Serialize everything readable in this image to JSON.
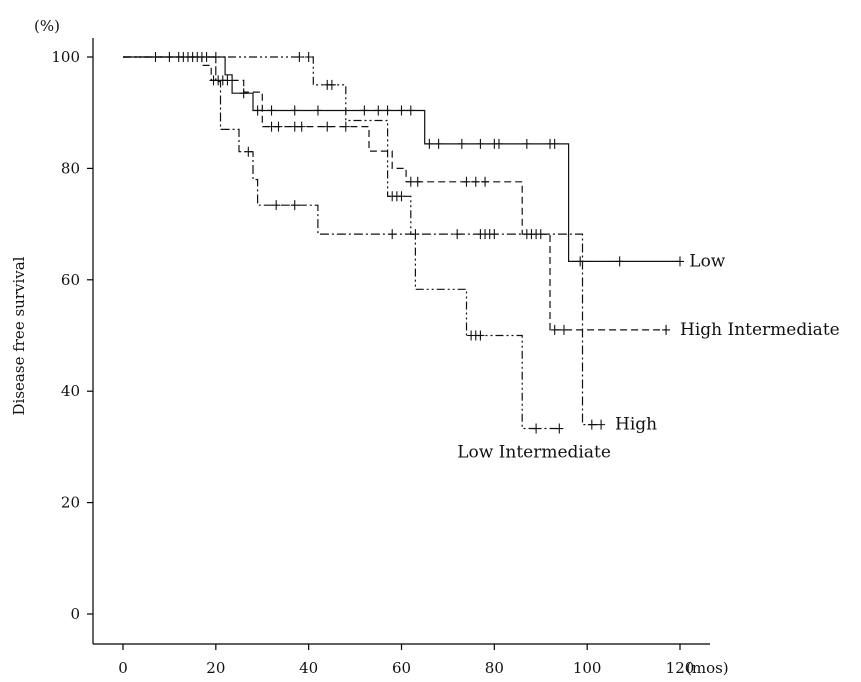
{
  "chart_data": {
    "type": "line",
    "subtype": "kaplan-meier step",
    "ylabel": "Disease free survival",
    "y_unit_label": "(%)",
    "x_unit_label": "(mos)",
    "xlim": [
      0,
      120
    ],
    "ylim": [
      0,
      100
    ],
    "x_ticks": [
      0,
      20,
      40,
      60,
      80,
      100,
      120
    ],
    "y_ticks": [
      0,
      20,
      40,
      60,
      80,
      100
    ],
    "grid": false,
    "series": [
      {
        "name": "Low",
        "style": "solid",
        "steps": [
          [
            0,
            100
          ],
          [
            22,
            100
          ],
          [
            22,
            96.8
          ],
          [
            23.5,
            96.8
          ],
          [
            23.5,
            93.5
          ],
          [
            28,
            93.5
          ],
          [
            28,
            90.4
          ],
          [
            65,
            90.4
          ],
          [
            65,
            84.4
          ],
          [
            96,
            84.4
          ],
          [
            96,
            63.3
          ],
          [
            120,
            63.3
          ]
        ],
        "censored": [
          [
            26,
            93.5
          ],
          [
            29,
            90.4
          ],
          [
            32,
            90.4
          ],
          [
            37,
            90.4
          ],
          [
            42,
            90.4
          ],
          [
            52,
            90.4
          ],
          [
            55,
            90.4
          ],
          [
            57,
            90.4
          ],
          [
            60,
            90.4
          ],
          [
            62,
            90.4
          ],
          [
            66,
            84.4
          ],
          [
            68,
            84.4
          ],
          [
            73,
            84.4
          ],
          [
            77,
            84.4
          ],
          [
            80,
            84.4
          ],
          [
            81,
            84.4
          ],
          [
            87,
            84.4
          ],
          [
            92,
            84.4
          ],
          [
            93,
            84.4
          ],
          [
            98.5,
            63.3
          ],
          [
            107,
            63.3
          ],
          [
            120,
            63.3
          ]
        ]
      },
      {
        "name": "High Intermediate",
        "style": "dashed",
        "steps": [
          [
            0,
            100
          ],
          [
            17,
            100
          ],
          [
            17,
            98.5
          ],
          [
            19,
            98.5
          ],
          [
            19,
            95.8
          ],
          [
            26,
            95.8
          ],
          [
            26,
            93.7
          ],
          [
            30,
            93.7
          ],
          [
            30,
            87.5
          ],
          [
            53,
            87.5
          ],
          [
            53,
            83.1
          ],
          [
            58,
            83.1
          ],
          [
            58,
            80
          ],
          [
            61,
            80
          ],
          [
            61,
            77.6
          ],
          [
            86,
            77.6
          ],
          [
            86,
            68.2
          ],
          [
            92,
            68.2
          ],
          [
            92,
            51
          ],
          [
            117,
            51
          ]
        ],
        "censored": [
          [
            19.5,
            95.8
          ],
          [
            20.5,
            95.8
          ],
          [
            21.5,
            95.8
          ],
          [
            22.5,
            95.8
          ],
          [
            32,
            87.5
          ],
          [
            33.5,
            87.5
          ],
          [
            37,
            87.5
          ],
          [
            38.5,
            87.5
          ],
          [
            44,
            87.5
          ],
          [
            48,
            87.5
          ],
          [
            62,
            77.6
          ],
          [
            63.5,
            77.6
          ],
          [
            74,
            77.6
          ],
          [
            76,
            77.6
          ],
          [
            78,
            77.6
          ],
          [
            93,
            51
          ],
          [
            95,
            51
          ],
          [
            117,
            51
          ]
        ]
      },
      {
        "name": "Low Intermediate",
        "style": "dash-dot-dot",
        "steps": [
          [
            0,
            100
          ],
          [
            41,
            100
          ],
          [
            41,
            95
          ],
          [
            48,
            95
          ],
          [
            48,
            88.6
          ],
          [
            57,
            88.6
          ],
          [
            57,
            75
          ],
          [
            62,
            75
          ],
          [
            62,
            68.2
          ],
          [
            63,
            68.2
          ],
          [
            63,
            58.3
          ],
          [
            74,
            58.3
          ],
          [
            74,
            50
          ],
          [
            86,
            50
          ],
          [
            86,
            33.3
          ],
          [
            94,
            33.3
          ]
        ],
        "censored": [
          [
            10,
            100
          ],
          [
            12,
            100
          ],
          [
            14,
            100
          ],
          [
            16,
            100
          ],
          [
            38,
            100
          ],
          [
            40,
            100
          ],
          [
            44,
            95
          ],
          [
            45,
            95
          ],
          [
            58,
            75
          ],
          [
            59,
            75
          ],
          [
            60,
            75
          ],
          [
            75,
            50
          ],
          [
            76,
            50
          ],
          [
            77,
            50
          ],
          [
            89,
            33.3
          ],
          [
            94,
            33.3
          ]
        ]
      },
      {
        "name": "High",
        "style": "dash-dot",
        "steps": [
          [
            0,
            100
          ],
          [
            20,
            100
          ],
          [
            20,
            95.6
          ],
          [
            21,
            95.6
          ],
          [
            21,
            87
          ],
          [
            25,
            87
          ],
          [
            25,
            83
          ],
          [
            28,
            83
          ],
          [
            28,
            78
          ],
          [
            29,
            78
          ],
          [
            29,
            73.4
          ],
          [
            42,
            73.4
          ],
          [
            42,
            68.2
          ],
          [
            99,
            68.2
          ],
          [
            99,
            34
          ],
          [
            103,
            34
          ]
        ],
        "censored": [
          [
            7,
            100
          ],
          [
            13,
            100
          ],
          [
            15,
            100
          ],
          [
            17,
            100
          ],
          [
            18,
            100
          ],
          [
            20,
            100
          ],
          [
            27,
            83
          ],
          [
            33,
            73.4
          ],
          [
            37,
            73.4
          ],
          [
            58,
            68.2
          ],
          [
            63,
            68.2
          ],
          [
            72,
            68.2
          ],
          [
            77,
            68.2
          ],
          [
            78,
            68.2
          ],
          [
            79,
            68.2
          ],
          [
            80,
            68.2
          ],
          [
            87,
            68.2
          ],
          [
            88,
            68.2
          ],
          [
            89,
            68.2
          ],
          [
            90,
            68.2
          ],
          [
            101,
            34
          ],
          [
            103,
            34
          ]
        ]
      }
    ],
    "annotations": [
      {
        "text": "Low",
        "x": 122,
        "y": 63.3,
        "anchor": "start"
      },
      {
        "text": "High Intermediate",
        "x": 120,
        "y": 51,
        "anchor": "start"
      },
      {
        "text": "High",
        "x": 106,
        "y": 34,
        "anchor": "start"
      },
      {
        "text": "Low Intermediate",
        "x": 72,
        "y": 29,
        "anchor": "start"
      }
    ]
  }
}
